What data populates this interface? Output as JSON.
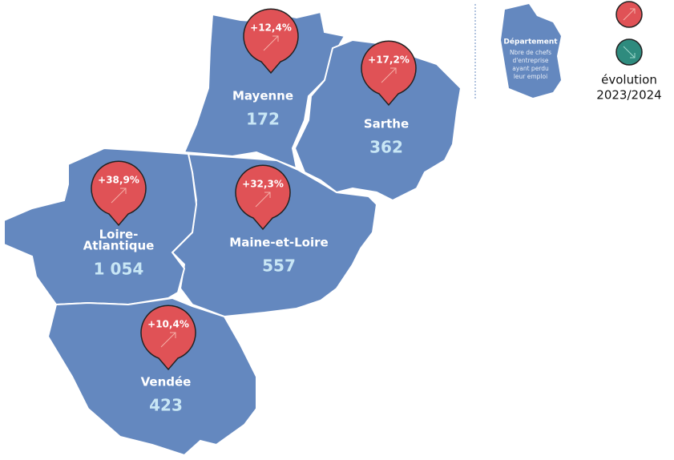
{
  "departments": [
    {
      "name": [
        "Mayenne"
      ],
      "value": "172",
      "evolution": "+12,4%"
    },
    {
      "name": [
        "Sarthe"
      ],
      "value": "362",
      "evolution": "+17,2%"
    },
    {
      "name": [
        "Maine-et-Loire"
      ],
      "value": "557",
      "evolution": "+32,3%"
    },
    {
      "name": [
        "Loire-",
        "Atlantique"
      ],
      "value": "1 054",
      "evolution": "+38,9%"
    },
    {
      "name": [
        "Vendée"
      ],
      "value": "423",
      "evolution": "+10,4%"
    }
  ],
  "legend": {
    "title": "Département",
    "description": [
      "Nbre de chefs",
      "d'entreprise",
      "ayant perdu",
      "leur emploi"
    ],
    "evolution": [
      "évolution",
      "2023/2024"
    ]
  }
}
